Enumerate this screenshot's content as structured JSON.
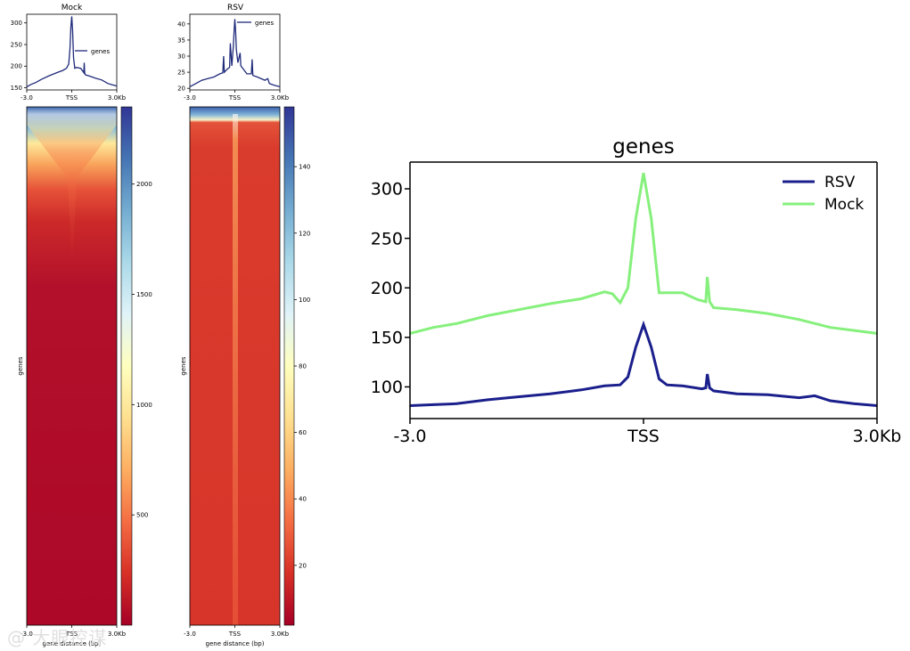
{
  "chart_data": [
    {
      "id": "mock_profile",
      "type": "line",
      "title": "Mock",
      "x_ticks": [
        "-3.0",
        "TSS",
        "3.0Kb"
      ],
      "ylim": [
        145,
        320
      ],
      "yticks": [
        150,
        200,
        250,
        300
      ],
      "legend": "genes",
      "legend_position": "right",
      "series": [
        {
          "name": "genes",
          "color": "#1f2a7a",
          "x": [
            -3.0,
            -2.7,
            -2.4,
            -2.0,
            -1.5,
            -1.0,
            -0.6,
            -0.35,
            -0.2,
            -0.12,
            -0.06,
            0.0,
            0.06,
            0.12,
            0.2,
            0.3,
            0.6,
            0.8,
            0.83,
            0.86,
            0.9,
            1.2,
            1.6,
            2.0,
            2.4,
            2.7,
            3.0
          ],
          "y": [
            152,
            158,
            162,
            170,
            178,
            185,
            190,
            195,
            205,
            240,
            290,
            315,
            280,
            220,
            195,
            197,
            195,
            185,
            208,
            185,
            180,
            177,
            172,
            168,
            160,
            157,
            154
          ]
        }
      ]
    },
    {
      "id": "rsv_profile",
      "type": "line",
      "title": "RSV",
      "x_ticks": [
        "-3.0",
        "TSS",
        "3.0Kb"
      ],
      "ylim": [
        19.5,
        43
      ],
      "yticks": [
        20,
        25,
        30,
        35,
        40
      ],
      "legend": "genes",
      "legend_position": "top-right",
      "series": [
        {
          "name": "genes",
          "color": "#1f2a7a",
          "x": [
            -3.0,
            -2.6,
            -2.2,
            -1.8,
            -1.4,
            -1.0,
            -0.8,
            -0.75,
            -0.7,
            -0.5,
            -0.35,
            -0.3,
            -0.2,
            -0.1,
            -0.05,
            0.0,
            0.05,
            0.1,
            0.2,
            0.3,
            0.35,
            0.4,
            0.8,
            1.1,
            1.15,
            1.2,
            1.5,
            2.0,
            2.2,
            2.3,
            2.6,
            3.0
          ],
          "y": [
            20.5,
            21.5,
            22.5,
            23,
            23.5,
            24.5,
            24.8,
            30,
            25,
            26,
            26.5,
            34,
            27,
            33,
            38,
            41.5,
            38,
            32,
            28,
            30,
            31,
            27,
            24.5,
            24.5,
            29,
            24,
            23.5,
            22.5,
            23,
            21.5,
            21,
            20.5
          ]
        }
      ]
    },
    {
      "id": "mock_heatmap",
      "type": "heatmap",
      "ylabel": "genes",
      "xlabel": "gene distance (bp)",
      "x_ticks": [
        "-3.0",
        "TSS",
        "3.0Kb"
      ],
      "colorbar_ticks": [
        500,
        1000,
        1500,
        2000
      ],
      "colorbar_range": [
        0,
        2350
      ],
      "colormap": "RdYlBu"
    },
    {
      "id": "rsv_heatmap",
      "type": "heatmap",
      "ylabel": "genes",
      "xlabel": "gene distance (bp)",
      "x_ticks": [
        "-3.0",
        "TSS",
        "3.0Kb"
      ],
      "colorbar_ticks": [
        20,
        40,
        60,
        80,
        100,
        120,
        140
      ],
      "colorbar_range": [
        2,
        158
      ],
      "colormap": "RdYlBu"
    },
    {
      "id": "combined_profile",
      "type": "line",
      "title": "genes",
      "x_ticks": [
        "-3.0",
        "TSS",
        "3.0Kb"
      ],
      "ylim": [
        68,
        327
      ],
      "yticks": [
        100,
        150,
        200,
        250,
        300
      ],
      "legend_position": "top-right",
      "series": [
        {
          "name": "RSV",
          "color": "#1a1f8c",
          "x": [
            -3.0,
            -2.7,
            -2.4,
            -2.0,
            -1.6,
            -1.2,
            -0.8,
            -0.5,
            -0.3,
            -0.2,
            -0.1,
            0.0,
            0.1,
            0.2,
            0.3,
            0.5,
            0.75,
            0.8,
            0.82,
            0.85,
            0.9,
            1.2,
            1.6,
            2.0,
            2.2,
            2.4,
            2.7,
            3.0
          ],
          "y": [
            81,
            82,
            83,
            87,
            90,
            93,
            97,
            101,
            102,
            110,
            140,
            163,
            140,
            108,
            102,
            101,
            98,
            99,
            113,
            99,
            96,
            93,
            92,
            89,
            91,
            86,
            83,
            81
          ]
        },
        {
          "name": "Mock",
          "color": "#86f07c",
          "x": [
            -3.0,
            -2.7,
            -2.4,
            -2.0,
            -1.6,
            -1.2,
            -0.8,
            -0.5,
            -0.4,
            -0.3,
            -0.2,
            -0.1,
            0.0,
            0.1,
            0.2,
            0.3,
            0.5,
            0.7,
            0.8,
            0.82,
            0.85,
            0.9,
            1.2,
            1.6,
            2.0,
            2.4,
            2.7,
            3.0
          ],
          "y": [
            154,
            160,
            164,
            172,
            178,
            184,
            189,
            196,
            194,
            185,
            200,
            270,
            316,
            270,
            195,
            195,
            195,
            188,
            186,
            211,
            186,
            180,
            178,
            174,
            168,
            160,
            157,
            154
          ]
        }
      ]
    }
  ],
  "watermark": "@ 大眼控谋"
}
